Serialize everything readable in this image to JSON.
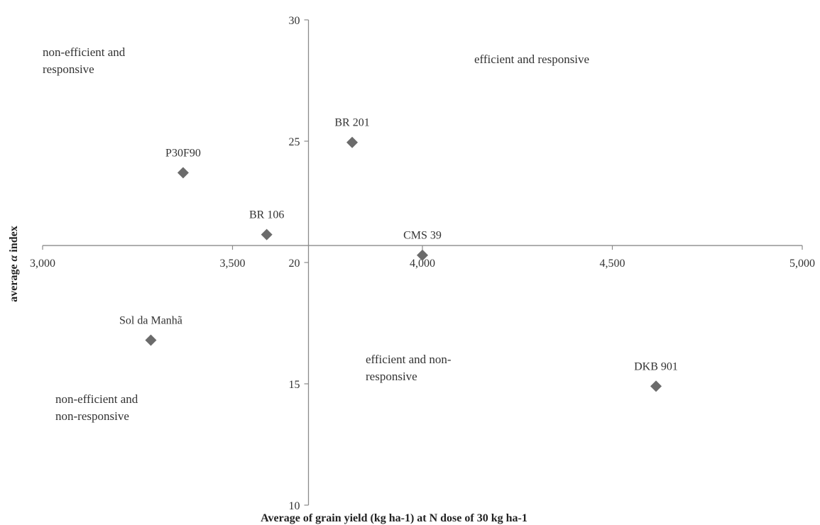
{
  "chart_data": {
    "type": "scatter",
    "title": "",
    "xlabel": "Average  of grain yield (kg ha-1) at N dose of 30 kg ha-1",
    "ylabel_prefix": "average ",
    "ylabel_symbol": "α",
    "ylabel_suffix": " index",
    "xlim": [
      3000,
      5000
    ],
    "ylim": [
      10,
      30
    ],
    "x_cross": 3700,
    "y_cross": 20.7,
    "x_ticks": [
      3000,
      3500,
      4000,
      4500,
      5000
    ],
    "x_tick_labels": [
      "3,000",
      "3,500",
      "4,000",
      "4,500",
      "5,000"
    ],
    "y_ticks": [
      10,
      15,
      20,
      25,
      30
    ],
    "y_tick_labels": [
      "10",
      "15",
      "20",
      "25",
      "30"
    ],
    "grid": false,
    "marker": "diamond",
    "marker_color": "#6b6b6b",
    "points": [
      {
        "label": "BR 201",
        "x": 3815,
        "y": 24.95
      },
      {
        "label": "P30F90",
        "x": 3370,
        "y": 23.7
      },
      {
        "label": "BR 106",
        "x": 3590,
        "y": 21.15
      },
      {
        "label": "CMS 39",
        "x": 4000,
        "y": 20.3
      },
      {
        "label": "Sol da Manhã",
        "x": 3285,
        "y": 16.8
      },
      {
        "label": "DKB 901",
        "x": 4615,
        "y": 14.9
      }
    ],
    "annotations": [
      {
        "lines": [
          "non-efficient and",
          "responsive"
        ]
      },
      {
        "lines": [
          "efficient and responsive"
        ]
      },
      {
        "lines": [
          "efficient and non-",
          "responsive"
        ]
      },
      {
        "lines": [
          "non-efficient and",
          "non-responsive"
        ]
      }
    ]
  }
}
